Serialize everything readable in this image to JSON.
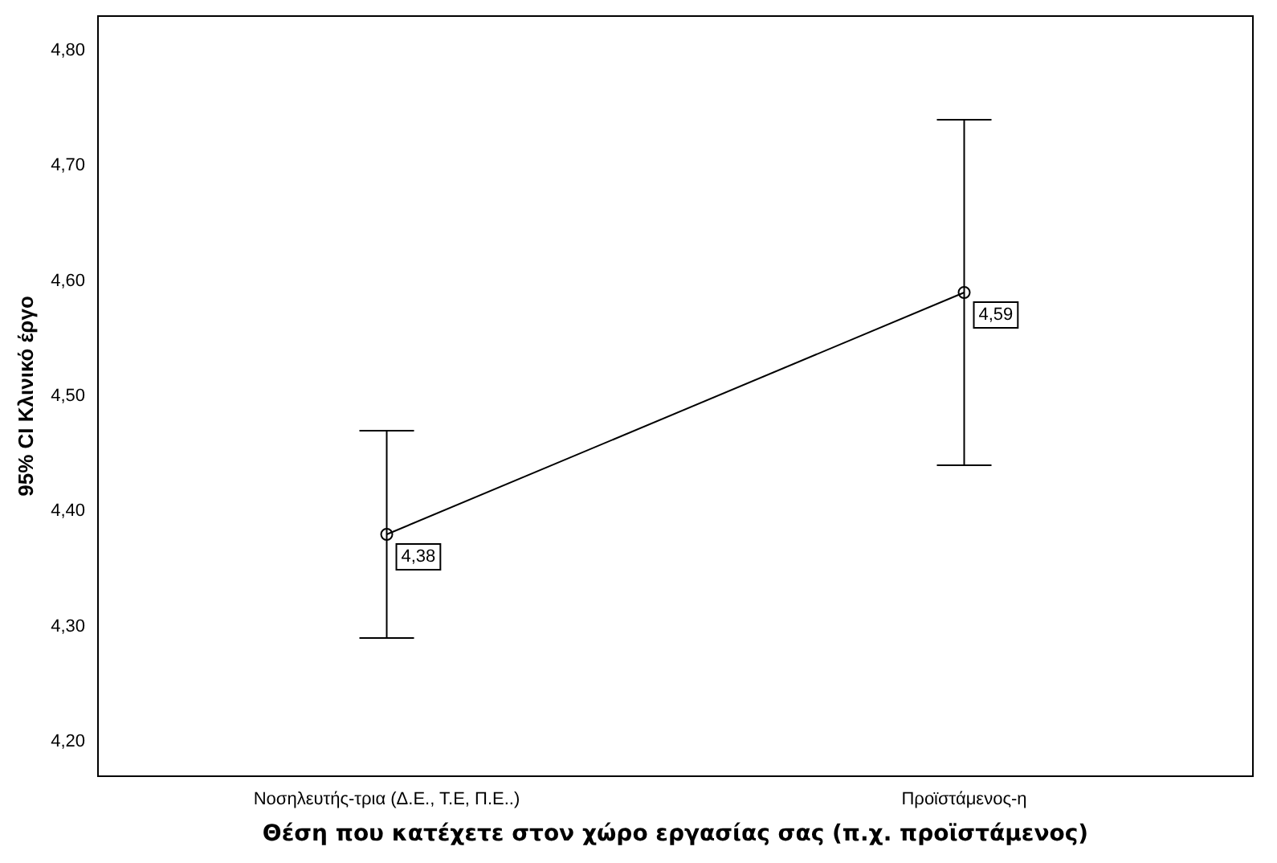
{
  "chart_data": {
    "type": "line",
    "xlabel": "Θέση που κατέχετε στον χώρο εργασίας σας (π.χ. προϊστάμενος)",
    "ylabel": "95% CI Κλινικό έργο",
    "categories": [
      "Νοσηλευτής-τρια (Δ.Ε., Τ.Ε, Π.Ε..)",
      "Προϊστάμενος-η"
    ],
    "series": [
      {
        "color": "#000000",
        "values": [
          4.38,
          4.59
        ],
        "errors": [
          [
            4.29,
            4.47
          ],
          [
            4.44,
            4.74
          ]
        ],
        "value_labels": [
          "4,38",
          "4,59"
        ]
      }
    ],
    "ylim": [
      4.17,
      4.83
    ],
    "yticks": [
      {
        "value": 4.2,
        "label": "4,20"
      },
      {
        "value": 4.3,
        "label": "4,30"
      },
      {
        "value": 4.4,
        "label": "4,40"
      },
      {
        "value": 4.5,
        "label": "4,50"
      },
      {
        "value": 4.6,
        "label": "4,60"
      },
      {
        "value": 4.7,
        "label": "4,70"
      },
      {
        "value": 4.8,
        "label": "4,80"
      }
    ],
    "grid": false,
    "legend": false,
    "marker": "circle",
    "line_style": "solid"
  }
}
